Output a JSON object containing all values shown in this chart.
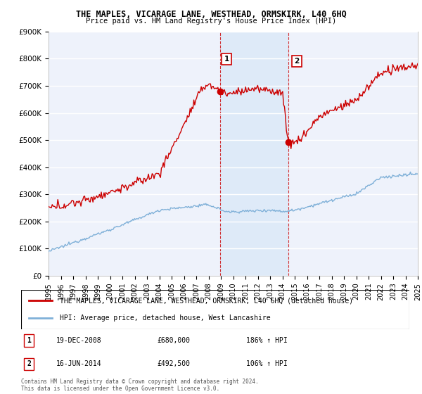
{
  "title": "THE MAPLES, VICARAGE LANE, WESTHEAD, ORMSKIRK, L40 6HQ",
  "subtitle": "Price paid vs. HM Land Registry's House Price Index (HPI)",
  "ylim": [
    0,
    900000
  ],
  "yticks": [
    0,
    100000,
    200000,
    300000,
    400000,
    500000,
    600000,
    700000,
    800000,
    900000
  ],
  "ytick_labels": [
    "£0",
    "£100K",
    "£200K",
    "£300K",
    "£400K",
    "£500K",
    "£600K",
    "£700K",
    "£800K",
    "£900K"
  ],
  "background_color": "#ffffff",
  "plot_bg_color": "#eef2fb",
  "grid_color": "#ffffff",
  "red_line_color": "#cc0000",
  "blue_line_color": "#7fb0d8",
  "ann1_x": 2008.96,
  "ann1_y": 680000,
  "ann1_label": "1",
  "ann1_date": "19-DEC-2008",
  "ann1_price": "£680,000",
  "ann1_hpi": "186% ↑ HPI",
  "ann2_x": 2014.46,
  "ann2_y": 492500,
  "ann2_label": "2",
  "ann2_date": "16-JUN-2014",
  "ann2_price": "£492,500",
  "ann2_hpi": "106% ↑ HPI",
  "legend_label_red": "THE MAPLES, VICARAGE LANE, WESTHEAD, ORMSKIRK, L40 6HQ (detached house)",
  "legend_label_blue": "HPI: Average price, detached house, West Lancashire",
  "footer": "Contains HM Land Registry data © Crown copyright and database right 2024.\nThis data is licensed under the Open Government Licence v3.0.",
  "xmin": 1995,
  "xmax": 2025,
  "highlight_xmin": 2008.96,
  "highlight_xmax": 2014.46
}
